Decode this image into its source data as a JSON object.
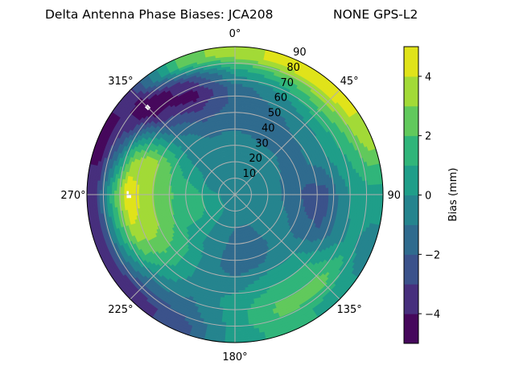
{
  "chart_data": {
    "type": "heatmap",
    "subtype": "polar-filled-contour",
    "title_left": "Delta Antenna Phase Biases: JCA208",
    "title_right": "NONE GPS-L2",
    "theta_direction": "clockwise",
    "theta_zero": "top",
    "theta_tick_labels": [
      "0°",
      "45°",
      "90°",
      "135°",
      "180°",
      "225°",
      "270°",
      "315°"
    ],
    "theta_ticks": [
      0,
      45,
      90,
      135,
      180,
      225,
      270,
      315
    ],
    "radial_ticks": [
      10,
      20,
      30,
      40,
      50,
      60,
      70,
      80,
      90
    ],
    "radial_tick_labels": [
      "10",
      "20",
      "30",
      "40",
      "50",
      "60",
      "70",
      "80",
      "90"
    ],
    "rlim": [
      0,
      90
    ],
    "grid": true,
    "colorbar": {
      "label": "Bias (mm)",
      "levels": [
        -5,
        -4,
        -3,
        -2,
        -1,
        0,
        1,
        2,
        3,
        4,
        5
      ],
      "ticks": [
        -4,
        -2,
        0,
        2,
        4
      ],
      "tick_labels": [
        "−4",
        "−2",
        "0",
        "2",
        "4"
      ],
      "colors": [
        "#46085c",
        "#472f7d",
        "#3b528b",
        "#2f6b8e",
        "#25848e",
        "#1f9e89",
        "#30b57a",
        "#61c95c",
        "#a2da37",
        "#e0e31a"
      ],
      "placement": "right"
    },
    "grid_azimuths": [
      0,
      22.5,
      45,
      67.5,
      90,
      112.5,
      135,
      157.5,
      180,
      202.5,
      225,
      247.5,
      270,
      292.5,
      315,
      337.5
    ],
    "grid_radii": [
      5,
      15,
      25,
      35,
      45,
      55,
      65,
      75,
      85
    ],
    "values": [
      [
        -0.5,
        -0.5,
        -0.5,
        -0.8,
        -1.3,
        -1.7,
        -1.5,
        0.5,
        3.5
      ],
      [
        -0.5,
        -0.5,
        -0.7,
        -1.0,
        -1.3,
        -1.2,
        -0.5,
        1.5,
        4.5
      ],
      [
        -0.5,
        -0.5,
        -0.7,
        -1.0,
        -1.2,
        -0.8,
        0.5,
        2.5,
        4.5
      ],
      [
        -0.5,
        -0.5,
        -0.8,
        -1.2,
        -1.2,
        -0.5,
        0.5,
        1.5,
        3.5
      ],
      [
        -0.5,
        -0.5,
        -0.8,
        -1.5,
        -2.5,
        -2.5,
        -0.5,
        0.5,
        0.5
      ],
      [
        -0.5,
        -0.5,
        -0.7,
        -1.0,
        -1.8,
        -2.0,
        -0.8,
        0.3,
        -0.5
      ],
      [
        -0.5,
        -0.5,
        -0.5,
        -0.5,
        -0.5,
        0.5,
        1.5,
        2.5,
        0.5
      ],
      [
        -0.5,
        -0.8,
        -1.2,
        -1.5,
        -1.0,
        0.5,
        1.5,
        2.5,
        1.5
      ],
      [
        -0.5,
        -0.8,
        -1.2,
        -1.5,
        -1.5,
        -0.5,
        0.5,
        0.5,
        0.5
      ],
      [
        -0.5,
        -0.5,
        -0.5,
        -0.5,
        -0.5,
        -0.5,
        -0.8,
        -1.5,
        -2.5
      ],
      [
        -0.3,
        0.5,
        0.5,
        0.5,
        1.5,
        1.5,
        0.5,
        -1.5,
        -3.5
      ],
      [
        -0.3,
        0.5,
        1.5,
        1.5,
        2.5,
        3.5,
        3.5,
        0.5,
        -3.5
      ],
      [
        -0.3,
        0.5,
        1.5,
        1.8,
        2.5,
        3.5,
        5.3,
        1.5,
        -3.5
      ],
      [
        -0.5,
        -0.5,
        0.5,
        1.0,
        2.5,
        3.5,
        2.5,
        -1.5,
        -4.5
      ],
      [
        -0.5,
        -0.5,
        -0.5,
        -0.5,
        -0.5,
        -1.5,
        -3.5,
        -5.3,
        -3.5
      ],
      [
        -0.5,
        -0.5,
        -0.5,
        -0.8,
        -1.5,
        -3.0,
        -4.5,
        -3.0,
        2.5
      ]
    ]
  }
}
